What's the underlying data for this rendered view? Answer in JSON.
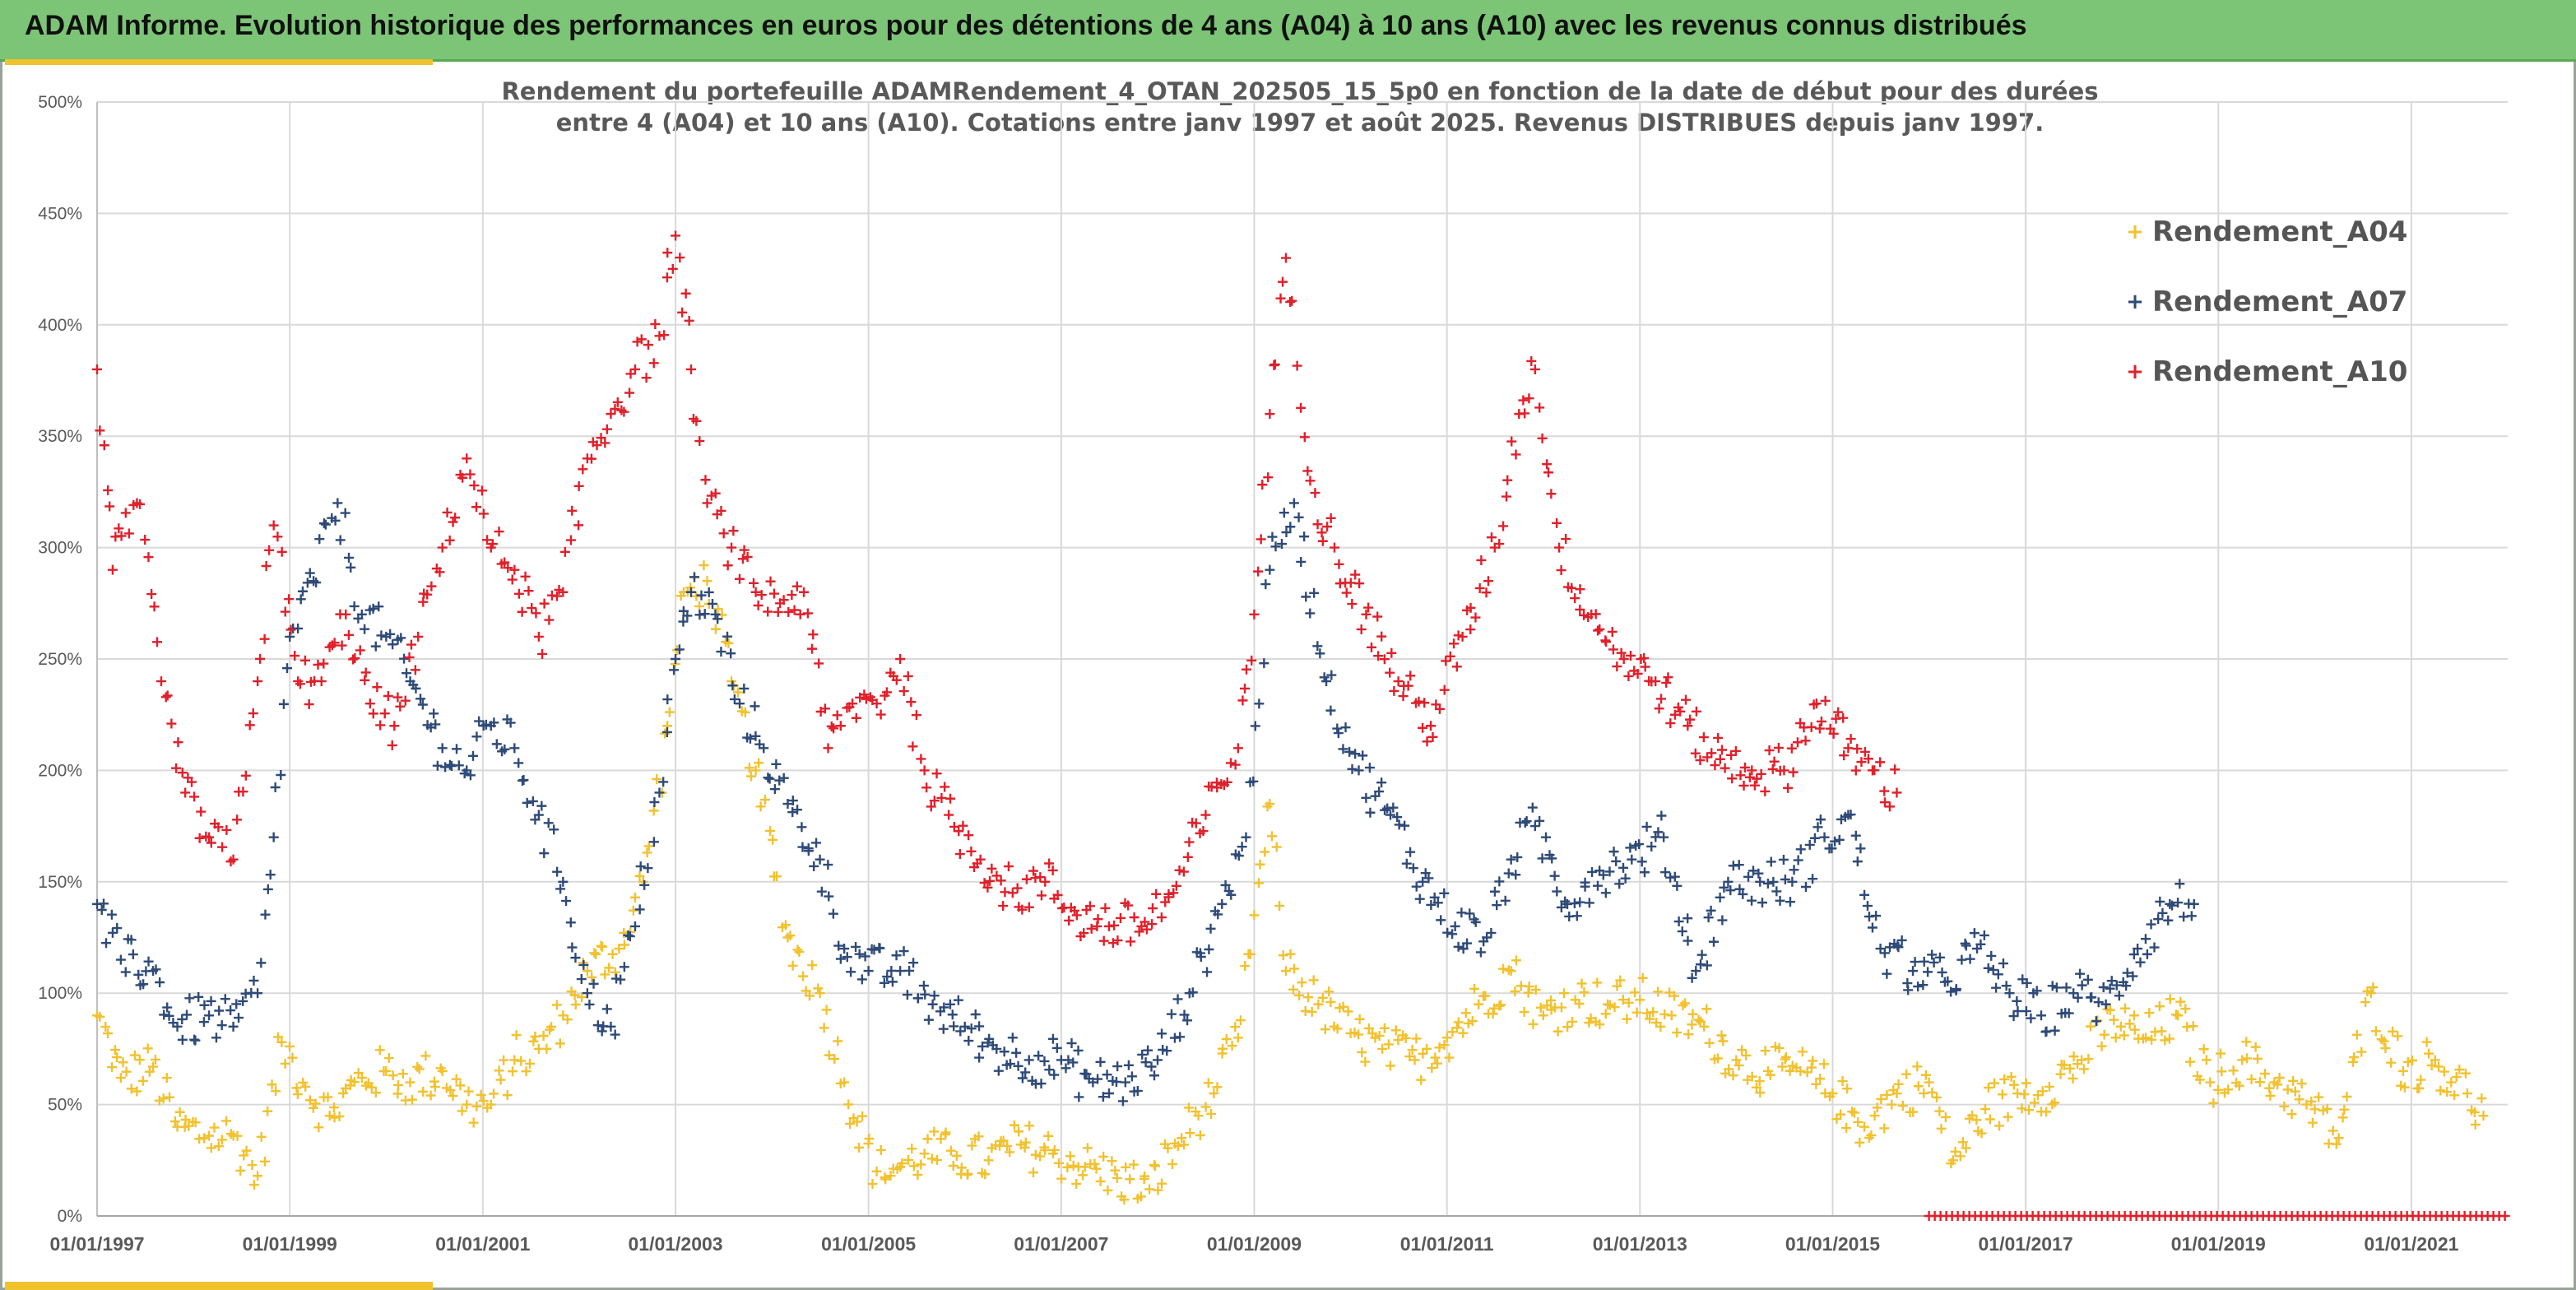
{
  "header": {
    "title": "ADAM Informe. Evolution historique des performances en euros pour des détentions de 4 ans (A04) à 10 ans (A10) avec les revenus connus distribués"
  },
  "colors": {
    "banner": "#7cc576",
    "accent": "#f0c22c",
    "A04": "#f2c12e",
    "A07": "#2e4a78",
    "A10": "#e0202a",
    "grid": "#d9d9d9"
  },
  "chart_data": {
    "type": "scatter",
    "title_line1": "Rendement du portefeuille ADAMRendement_4_OTAN_202505_15_5p0  en fonction de la date de début pour des durées",
    "title_line2": "entre 4 (A04) et 10 ans (A10). Cotations entre janv 1997 et août 2025. Revenus DISTRIBUES depuis janv 1997.",
    "xlabel": "",
    "ylabel": "",
    "xlim": [
      "1997-01-01",
      "2022-01-01"
    ],
    "ylim": [
      0,
      5
    ],
    "y_ticks": [
      "0%",
      "50%",
      "100%",
      "150%",
      "200%",
      "250%",
      "300%",
      "350%",
      "400%",
      "450%",
      "500%"
    ],
    "x_ticks": [
      "01/01/1997",
      "01/01/1999",
      "01/01/2001",
      "01/01/2003",
      "01/01/2005",
      "01/01/2007",
      "01/01/2009",
      "01/01/2011",
      "01/01/2013",
      "01/01/2015",
      "01/01/2017",
      "01/01/2019",
      "01/01/2021"
    ],
    "grid": true,
    "legend_position": "top-right",
    "marker": "+",
    "series": [
      {
        "name": "Rendement_A04",
        "x": [
          "1997-01-01",
          "1997-04-01",
          "1997-08-01",
          "1997-11-01",
          "1998-03-01",
          "1998-06-01",
          "1998-09-01",
          "1998-12-01",
          "1999-03-01",
          "1999-06-01",
          "1999-10-01",
          "2000-01-01",
          "2000-04-01",
          "2000-08-01",
          "2000-11-01",
          "2001-02-01",
          "2001-05-01",
          "2001-08-01",
          "2001-11-01",
          "2002-02-01",
          "2002-06-01",
          "2002-09-01",
          "2002-12-01",
          "2003-02-01",
          "2003-05-01",
          "2003-08-01",
          "2003-11-01",
          "2004-03-01",
          "2004-07-01",
          "2004-10-01",
          "2005-02-01",
          "2005-05-01",
          "2005-08-01",
          "2005-12-01",
          "2006-04-01",
          "2006-08-01",
          "2006-12-01",
          "2007-04-01",
          "2007-08-01",
          "2007-12-01",
          "2008-04-01",
          "2008-08-01",
          "2008-11-01",
          "2009-01-01",
          "2009-03-01",
          "2009-05-01",
          "2009-09-01",
          "2010-01-01",
          "2010-05-01",
          "2010-09-01",
          "2011-01-01",
          "2011-05-01",
          "2011-09-01",
          "2012-01-01",
          "2012-05-01",
          "2012-09-01",
          "2013-01-01",
          "2013-05-01",
          "2013-09-01",
          "2014-01-01",
          "2014-05-01",
          "2014-09-01",
          "2015-01-01",
          "2015-05-01",
          "2015-09-01",
          "2016-01-01",
          "2016-04-01",
          "2016-08-01",
          "2016-12-01",
          "2017-04-01",
          "2017-08-01",
          "2017-12-01",
          "2018-04-01",
          "2018-08-01",
          "2018-12-01",
          "2019-04-01",
          "2019-08-01",
          "2019-12-01",
          "2020-04-01",
          "2020-08-01",
          "2020-12-01",
          "2021-04-01",
          "2021-08-01",
          "2021-10-01"
        ],
        "y": [
          0.9,
          0.62,
          0.67,
          0.4,
          0.36,
          0.36,
          0.18,
          0.78,
          0.58,
          0.45,
          0.62,
          0.65,
          0.6,
          0.65,
          0.5,
          0.5,
          0.7,
          0.75,
          0.9,
          1.1,
          1.2,
          1.5,
          2.2,
          2.8,
          2.85,
          2.4,
          2.0,
          1.25,
          1.0,
          0.6,
          0.2,
          0.22,
          0.28,
          0.27,
          0.25,
          0.32,
          0.28,
          0.22,
          0.17,
          0.12,
          0.35,
          0.55,
          0.8,
          1.35,
          1.85,
          1.1,
          0.95,
          0.82,
          0.75,
          0.7,
          0.8,
          0.95,
          1.1,
          0.9,
          0.97,
          0.95,
          0.97,
          0.9,
          0.85,
          0.7,
          0.65,
          0.65,
          0.55,
          0.4,
          0.55,
          0.6,
          0.25,
          0.48,
          0.55,
          0.58,
          0.7,
          0.88,
          0.8,
          0.9,
          0.6,
          0.7,
          0.6,
          0.5,
          0.35,
          1.0,
          0.65,
          0.7,
          0.55,
          0.45
        ]
      },
      {
        "name": "Rendement_A07",
        "x": [
          "1997-01-01",
          "1997-04-01",
          "1997-08-01",
          "1997-11-01",
          "1998-03-01",
          "1998-06-01",
          "1998-09-01",
          "1998-11-01",
          "1999-01-01",
          "1999-04-01",
          "1999-07-01",
          "1999-10-01",
          "2000-01-01",
          "2000-04-01",
          "2000-08-01",
          "2000-11-01",
          "2001-02-01",
          "2001-05-01",
          "2001-08-01",
          "2001-11-01",
          "2002-02-01",
          "2002-05-01",
          "2002-08-01",
          "2002-11-01",
          "2003-01-01",
          "2003-03-01",
          "2003-06-01",
          "2003-09-01",
          "2003-12-01",
          "2004-03-01",
          "2004-07-01",
          "2004-10-01",
          "2005-01-01",
          "2005-05-01",
          "2005-09-01",
          "2006-01-01",
          "2006-05-01",
          "2006-09-01",
          "2007-01-01",
          "2007-05-01",
          "2007-09-01",
          "2008-01-01",
          "2008-05-01",
          "2008-09-01",
          "2008-12-01",
          "2009-03-01",
          "2009-06-01",
          "2009-10-01",
          "2010-02-01",
          "2010-06-01",
          "2010-10-01",
          "2011-02-01",
          "2011-06-01",
          "2011-09-01",
          "2011-12-01",
          "2012-04-01",
          "2012-08-01",
          "2012-12-01",
          "2013-04-01",
          "2013-08-01",
          "2013-12-01",
          "2014-04-01",
          "2014-08-01",
          "2014-12-01",
          "2015-03-01",
          "2015-07-01",
          "2015-11-01",
          "2016-03-01",
          "2016-07-01",
          "2016-11-01",
          "2017-03-01",
          "2017-07-01",
          "2017-11-01",
          "2018-03-01",
          "2018-07-01",
          "2018-10-01"
        ],
        "y": [
          1.4,
          1.15,
          1.1,
          0.85,
          0.9,
          0.85,
          1.0,
          1.7,
          2.6,
          2.85,
          3.2,
          2.7,
          2.6,
          2.4,
          2.1,
          2.0,
          2.2,
          2.1,
          1.8,
          1.5,
          1.0,
          0.85,
          1.3,
          1.9,
          2.5,
          2.8,
          2.7,
          2.3,
          2.1,
          1.85,
          1.6,
          1.2,
          1.1,
          1.1,
          0.95,
          0.85,
          0.75,
          0.7,
          0.7,
          0.6,
          0.6,
          0.7,
          1.0,
          1.4,
          1.7,
          2.9,
          3.2,
          2.4,
          2.0,
          1.8,
          1.5,
          1.3,
          1.25,
          1.6,
          1.75,
          1.4,
          1.55,
          1.6,
          1.7,
          1.1,
          1.5,
          1.5,
          1.5,
          1.7,
          1.8,
          1.2,
          1.1,
          1.05,
          1.2,
          1.0,
          0.9,
          1.0,
          0.95,
          1.2,
          1.4,
          1.4
        ]
      },
      {
        "name": "Rendement_A10",
        "x": [
          "1997-01-01",
          "1997-03-01",
          "1997-06-01",
          "1997-09-01",
          "1997-12-01",
          "1998-03-01",
          "1998-06-01",
          "1998-09-01",
          "1998-11-01",
          "1999-02-01",
          "1999-05-01",
          "1999-08-01",
          "1999-11-01",
          "2000-02-01",
          "2000-05-01",
          "2000-08-01",
          "2000-11-01",
          "2001-02-01",
          "2001-05-01",
          "2001-08-01",
          "2001-11-01",
          "2002-02-01",
          "2002-05-01",
          "2002-08-01",
          "2002-11-01",
          "2003-01-01",
          "2003-03-01",
          "2003-05-01",
          "2003-08-01",
          "2003-11-01",
          "2004-02-01",
          "2004-05-01",
          "2004-08-01",
          "2004-11-01",
          "2005-02-01",
          "2005-05-01",
          "2005-08-01",
          "2005-11-01",
          "2006-03-01",
          "2006-07-01",
          "2006-11-01",
          "2007-03-01",
          "2007-07-01",
          "2007-11-01",
          "2008-03-01",
          "2008-07-01",
          "2008-11-01",
          "2009-01-01",
          "2009-03-01",
          "2009-05-01",
          "2009-08-01",
          "2009-11-01",
          "2010-03-01",
          "2010-07-01",
          "2010-11-01",
          "2011-03-01",
          "2011-07-01",
          "2011-10-01",
          "2011-12-01",
          "2012-03-01",
          "2012-07-01",
          "2012-11-01",
          "2013-03-01",
          "2013-07-01",
          "2013-11-01",
          "2014-03-01",
          "2014-07-01",
          "2014-11-01",
          "2015-03-01",
          "2015-06-01",
          "2015-09-01"
        ],
        "y": [
          3.8,
          2.9,
          3.2,
          2.4,
          1.9,
          1.7,
          1.6,
          2.4,
          3.1,
          2.4,
          2.4,
          2.7,
          2.3,
          2.2,
          2.6,
          3.0,
          3.4,
          3.0,
          2.9,
          2.6,
          2.8,
          3.4,
          3.6,
          3.8,
          3.95,
          4.4,
          3.8,
          3.2,
          3.0,
          2.8,
          2.75,
          2.8,
          2.1,
          2.3,
          2.3,
          2.5,
          2.0,
          1.8,
          1.6,
          1.45,
          1.5,
          1.35,
          1.3,
          1.3,
          1.45,
          1.8,
          2.1,
          2.7,
          3.6,
          4.3,
          3.3,
          3.0,
          2.7,
          2.4,
          2.2,
          2.6,
          3.0,
          3.6,
          3.8,
          3.0,
          2.7,
          2.5,
          2.4,
          2.2,
          2.05,
          2.0,
          2.0,
          2.3,
          2.1,
          2.0,
          1.9
        ]
      },
      {
        "name": "",
        "x_range": [
          "2016-01-01",
          "2022-01-01"
        ],
        "y": 0
      }
    ]
  }
}
